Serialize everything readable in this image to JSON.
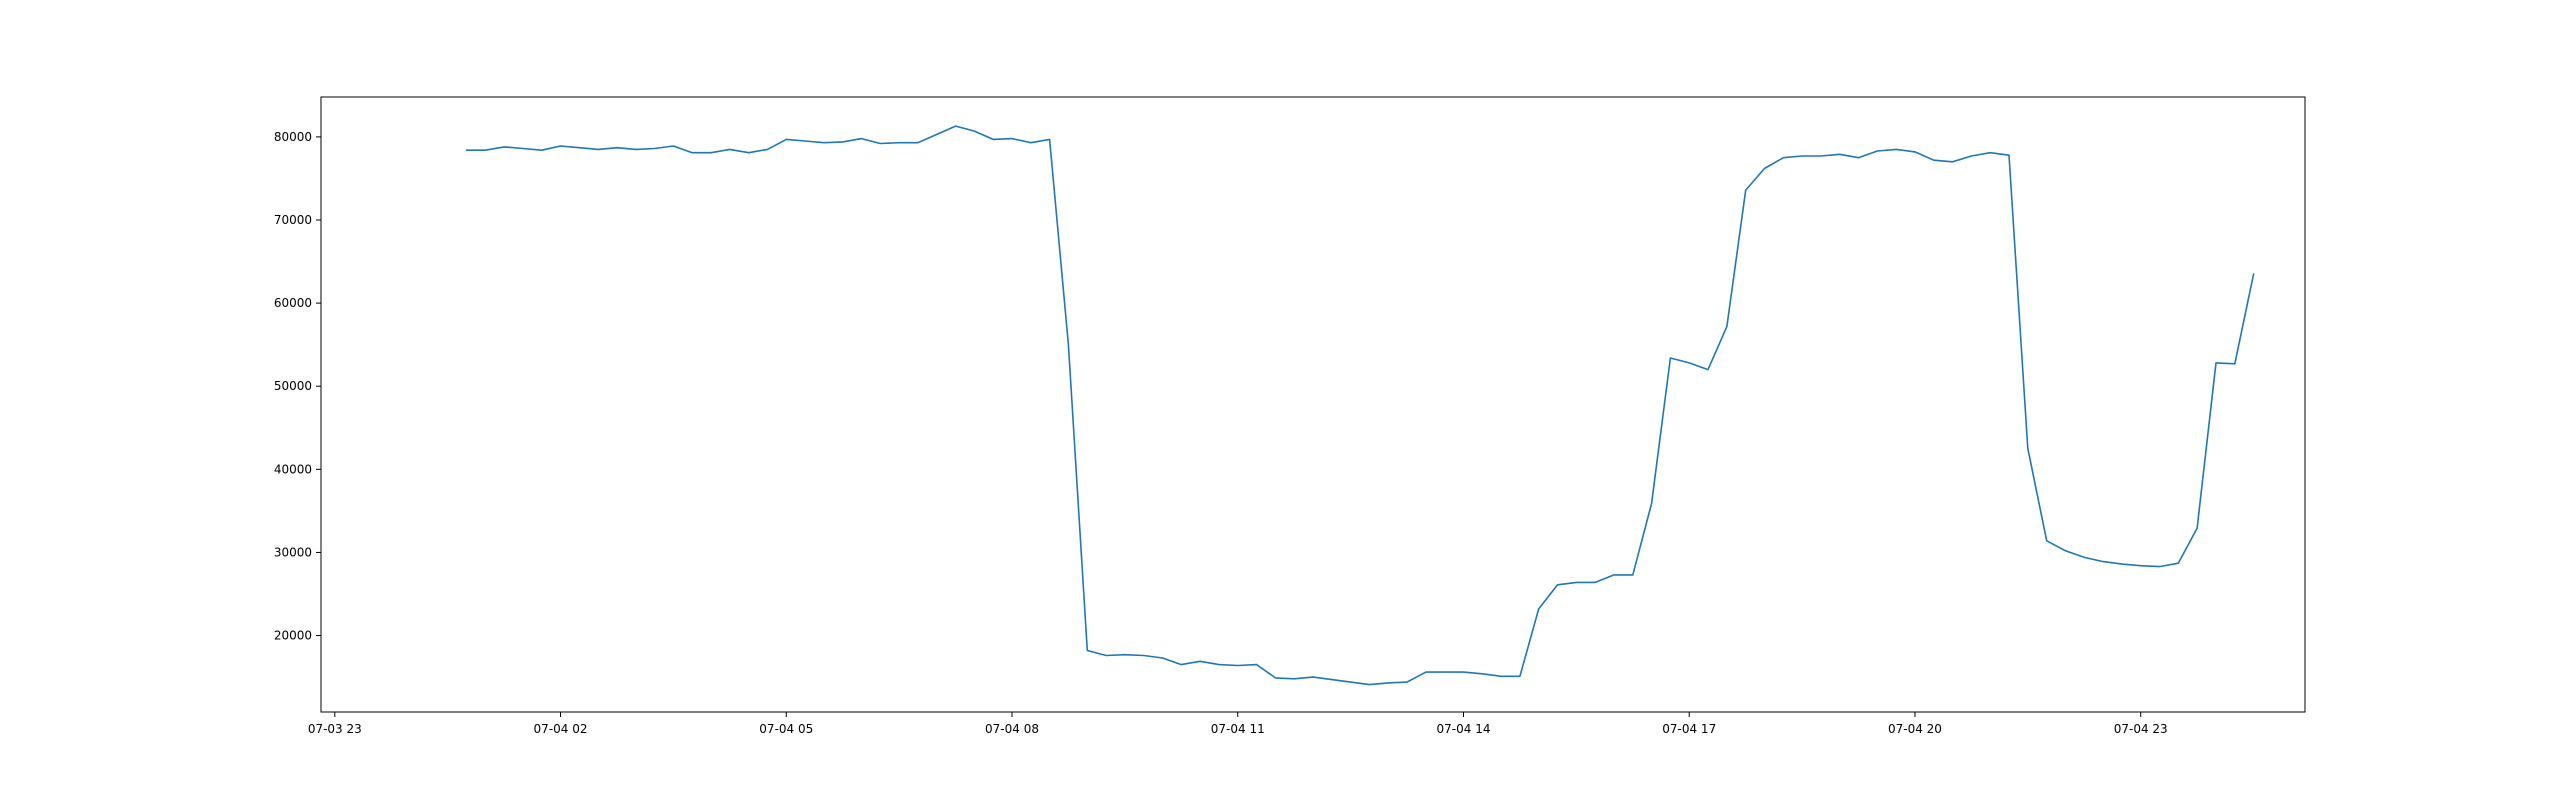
{
  "chart_data": {
    "type": "line",
    "title": "",
    "xlabel": "",
    "ylabel": "",
    "grid": false,
    "legend": "none",
    "line_color": "#1f77b4",
    "x_start": "2024-07-04 00:45",
    "x_step_minutes": 15,
    "xlim": [
      "2024-07-03 22:49",
      "2024-07-05 01:11"
    ],
    "ylim": [
      10800,
      84800
    ],
    "x_ticks": [
      {
        "t": "2024-07-03 23:00",
        "label": "07-03 23"
      },
      {
        "t": "2024-07-04 02:00",
        "label": "07-04 02"
      },
      {
        "t": "2024-07-04 05:00",
        "label": "07-04 05"
      },
      {
        "t": "2024-07-04 08:00",
        "label": "07-04 08"
      },
      {
        "t": "2024-07-04 11:00",
        "label": "07-04 11"
      },
      {
        "t": "2024-07-04 14:00",
        "label": "07-04 14"
      },
      {
        "t": "2024-07-04 17:00",
        "label": "07-04 17"
      },
      {
        "t": "2024-07-04 20:00",
        "label": "07-04 20"
      },
      {
        "t": "2024-07-04 23:00",
        "label": "07-04 23"
      }
    ],
    "y_ticks": [
      {
        "v": 20000,
        "label": "20000"
      },
      {
        "v": 30000,
        "label": "30000"
      },
      {
        "v": 40000,
        "label": "40000"
      },
      {
        "v": 50000,
        "label": "50000"
      },
      {
        "v": 60000,
        "label": "60000"
      },
      {
        "v": 70000,
        "label": "70000"
      },
      {
        "v": 80000,
        "label": "80000"
      }
    ],
    "y": [
      78400,
      78400,
      78800,
      78600,
      78400,
      78900,
      78700,
      78500,
      78700,
      78500,
      78600,
      78900,
      78100,
      78100,
      78500,
      78100,
      78500,
      79700,
      79500,
      79300,
      79400,
      79800,
      79200,
      79300,
      79300,
      80300,
      81300,
      80700,
      79700,
      79800,
      79300,
      79700,
      55000,
      18200,
      17600,
      17700,
      17600,
      17300,
      16500,
      16900,
      16500,
      16400,
      16500,
      14900,
      14800,
      15000,
      14700,
      14400,
      14100,
      14300,
      14400,
      15600,
      15600,
      15600,
      15400,
      15100,
      15100,
      23200,
      26100,
      26400,
      26400,
      27300,
      27300,
      35900,
      53400,
      52800,
      52000,
      57200,
      73600,
      76200,
      77500,
      77700,
      77700,
      77900,
      77500,
      78300,
      78500,
      78200,
      77200,
      77000,
      77700,
      78100,
      77800,
      42500,
      31400,
      30200,
      29400,
      28900,
      28600,
      28400,
      28300,
      28700,
      32900,
      52800,
      52700,
      63500
    ]
  }
}
